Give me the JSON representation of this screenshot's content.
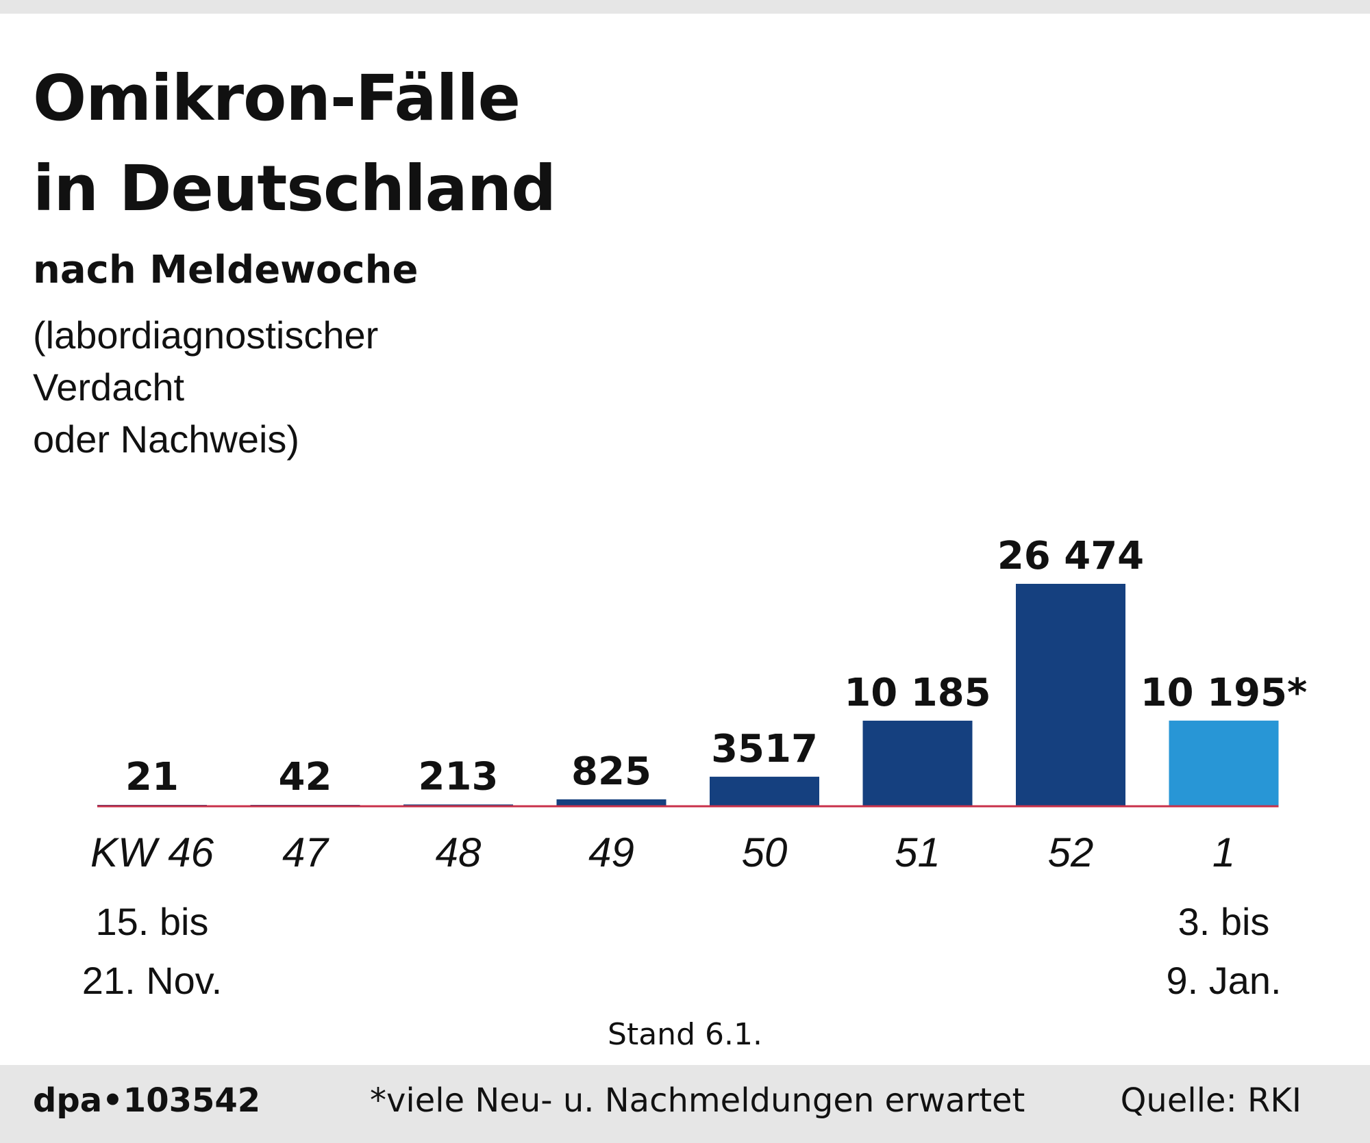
{
  "header": {
    "title_line1": "Omikron-Fälle",
    "title_line2": "in Deutschland",
    "subtitle": "nach Meldewoche",
    "note_line1": "(labordiagnostischer Verdacht",
    "note_line2": "oder Nachweis)"
  },
  "chart_data": {
    "type": "bar",
    "title": "Omikron-Fälle in Deutschland",
    "subtitle": "nach Meldewoche",
    "categories": [
      "KW 46",
      "47",
      "48",
      "49",
      "50",
      "51",
      "52",
      "1"
    ],
    "values": [
      21,
      42,
      213,
      825,
      3517,
      10185,
      26474,
      10195
    ],
    "value_labels": [
      "21",
      "42",
      "213",
      "825",
      "3517",
      "10 185",
      "26 474",
      "10 195*"
    ],
    "date_ranges": [
      [
        "15. bis",
        "21. Nov."
      ],
      null,
      null,
      null,
      null,
      null,
      null,
      [
        "3. bis",
        "9. Jan."
      ]
    ],
    "ylim": [
      0,
      26474
    ],
    "grid": false,
    "legend": "none",
    "colors": {
      "bar": "#15407f",
      "bar_provisional": "#2896d6",
      "baseline": "#c8314a",
      "text": "#111111"
    },
    "provisional_index": 7
  },
  "stand": "Stand 6.1.",
  "footer": {
    "id": "dpa•103542",
    "footnote": "*viele Neu- u. Nachmeldungen erwartet",
    "source": "Quelle: RKI"
  }
}
